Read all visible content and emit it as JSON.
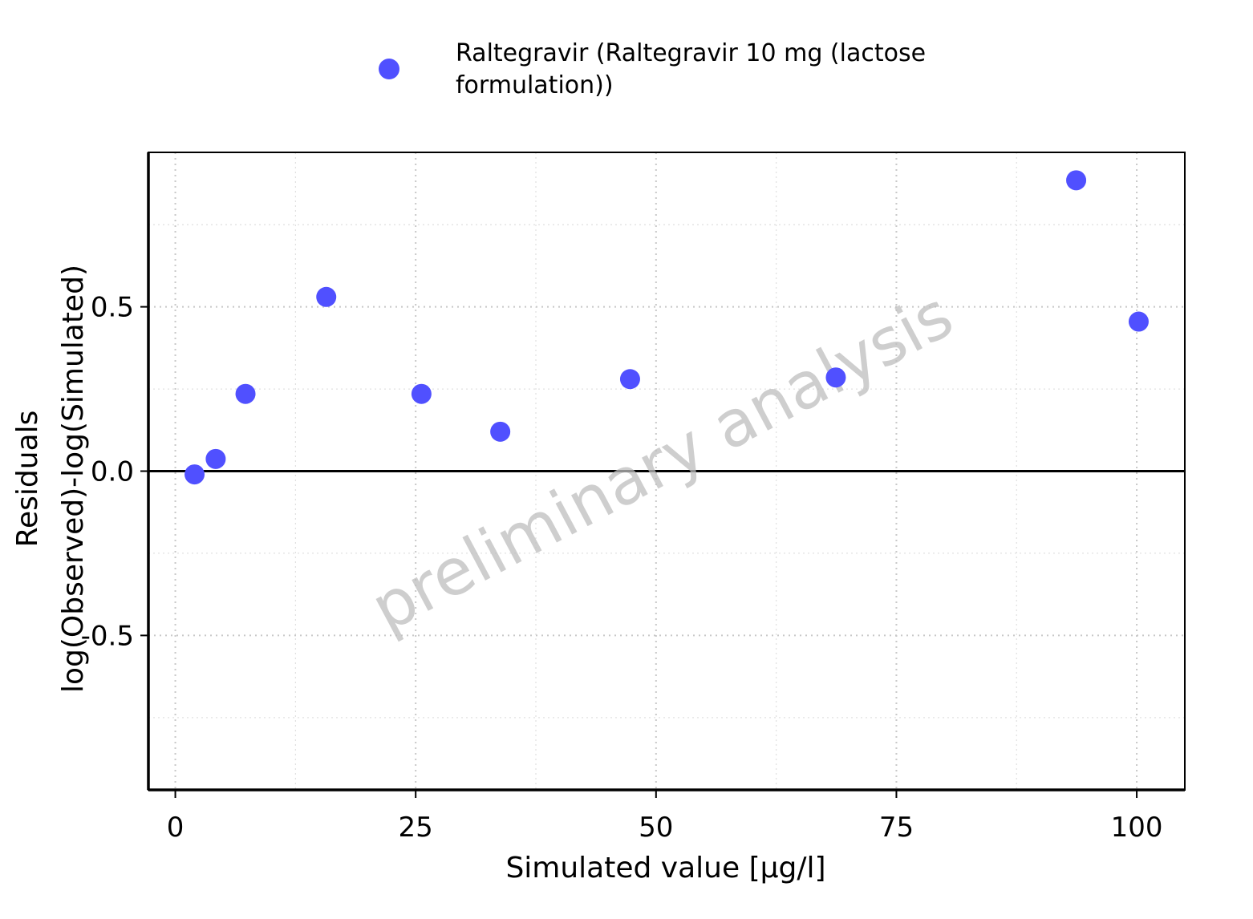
{
  "chart_data": {
    "type": "scatter",
    "xlabel": "Simulated value [µg/l]",
    "ylabel_lines": [
      "Residuals",
      "log(Observed)-log(Simulated)"
    ],
    "xlim": [
      -2.8,
      105
    ],
    "ylim": [
      -0.97,
      0.97
    ],
    "x_ticks": [
      0,
      25,
      50,
      75,
      100
    ],
    "x_tick_labels": [
      "0",
      "25",
      "50",
      "75",
      "100"
    ],
    "y_ticks": [
      -0.5,
      0.0,
      0.5
    ],
    "y_tick_labels": [
      "-0.5",
      "0.0",
      "0.5"
    ],
    "grid": true,
    "reference_line_y": 0,
    "legend_position": "top",
    "legend_lines": [
      "Raltegravir (Raltegravir 10 mg (lactose",
      "formulation))"
    ],
    "watermark": "preliminary analysis",
    "series": [
      {
        "name": "Raltegravir (Raltegravir 10 mg (lactose formulation))",
        "color": "#5050FF",
        "points": [
          {
            "x": 2.0,
            "y": -0.01
          },
          {
            "x": 4.2,
            "y": 0.037
          },
          {
            "x": 7.3,
            "y": 0.235
          },
          {
            "x": 15.7,
            "y": 0.53
          },
          {
            "x": 25.6,
            "y": 0.235
          },
          {
            "x": 33.8,
            "y": 0.12
          },
          {
            "x": 47.3,
            "y": 0.28
          },
          {
            "x": 68.7,
            "y": 0.285
          },
          {
            "x": 93.7,
            "y": 0.885
          },
          {
            "x": 100.2,
            "y": 0.455
          }
        ]
      }
    ]
  }
}
